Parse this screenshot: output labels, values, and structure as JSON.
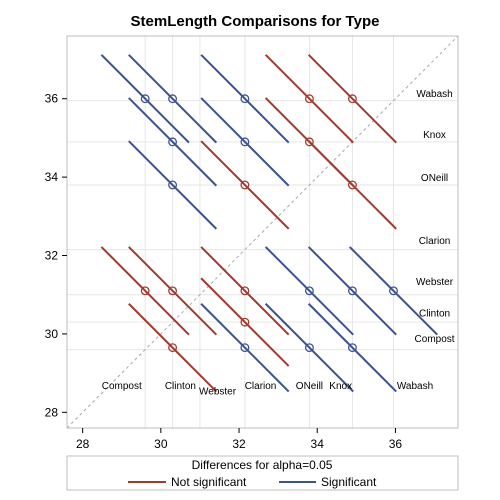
{
  "chart_data": {
    "type": "diffogram",
    "title": "StemLength Comparisons for Type",
    "xlim": [
      27.6,
      37.6
    ],
    "ylim": [
      27.6,
      37.6
    ],
    "x_ticks": [
      28,
      30,
      32,
      34,
      36
    ],
    "y_ticks": [
      28,
      30,
      32,
      34,
      36
    ],
    "x_tick_labels": [
      "28",
      "30",
      "32",
      "34",
      "36"
    ],
    "y_tick_labels": [
      "28",
      "30",
      "32",
      "34",
      "36"
    ],
    "grid": true,
    "reference_line": "diagonal",
    "levels": [
      {
        "name": "Compost",
        "mean": 29.6
      },
      {
        "name": "Clinton",
        "mean": 30.3
      },
      {
        "name": "Webster",
        "mean": 31.0
      },
      {
        "name": "Clarion",
        "mean": 32.15
      },
      {
        "name": "ONeill",
        "mean": 33.8
      },
      {
        "name": "Knox",
        "mean": 34.9
      },
      {
        "name": "Wabash",
        "mean": 35.95
      }
    ],
    "x_level_labels": [
      {
        "text": "Compost",
        "x": 29.0,
        "y": 28.6
      },
      {
        "text": "Clinton",
        "x": 30.5,
        "y": 28.6
      },
      {
        "text": "Webster",
        "x": 31.45,
        "y": 28.45
      },
      {
        "text": "Clarion",
        "x": 32.55,
        "y": 28.6
      },
      {
        "text": "ONeill",
        "x": 33.8,
        "y": 28.6
      },
      {
        "text": "Knox",
        "x": 34.6,
        "y": 28.6
      },
      {
        "text": "Wabash",
        "x": 36.5,
        "y": 28.6
      }
    ],
    "y_level_labels": [
      {
        "text": "Wabash",
        "x": 37.0,
        "y": 36.05
      },
      {
        "text": "Knox",
        "x": 37.0,
        "y": 35.0
      },
      {
        "text": "ONeill",
        "x": 37.0,
        "y": 33.9
      },
      {
        "text": "Clarion",
        "x": 37.0,
        "y": 32.3
      },
      {
        "text": "Webster",
        "x": 37.0,
        "y": 31.25
      },
      {
        "text": "Clinton",
        "x": 37.0,
        "y": 30.45
      },
      {
        "text": "Compost",
        "x": 37.0,
        "y": 29.8
      }
    ],
    "segments": [
      {
        "x": 32.15,
        "y": 36.0,
        "hw": 1.12,
        "significant": true
      },
      {
        "x": 33.8,
        "y": 36.0,
        "hw": 1.12,
        "significant": false
      },
      {
        "x": 34.9,
        "y": 36.0,
        "hw": 1.12,
        "significant": false
      },
      {
        "x": 29.6,
        "y": 36.0,
        "hw": 1.12,
        "significant": true
      },
      {
        "x": 30.3,
        "y": 36.0,
        "hw": 1.12,
        "significant": true
      },
      {
        "x": 32.15,
        "y": 34.9,
        "hw": 1.12,
        "significant": true
      },
      {
        "x": 30.3,
        "y": 34.9,
        "hw": 1.12,
        "significant": true
      },
      {
        "x": 33.8,
        "y": 34.9,
        "hw": 1.12,
        "significant": false
      },
      {
        "x": 32.15,
        "y": 33.8,
        "hw": 1.12,
        "significant": false
      },
      {
        "x": 34.9,
        "y": 33.8,
        "hw": 1.12,
        "significant": false
      },
      {
        "x": 30.3,
        "y": 33.8,
        "hw": 1.12,
        "significant": true
      },
      {
        "x": 29.6,
        "y": 31.1,
        "hw": 1.12,
        "significant": false
      },
      {
        "x": 30.3,
        "y": 31.1,
        "hw": 1.12,
        "significant": false
      },
      {
        "x": 32.15,
        "y": 31.1,
        "hw": 1.12,
        "significant": false
      },
      {
        "x": 33.8,
        "y": 31.1,
        "hw": 1.12,
        "significant": true
      },
      {
        "x": 34.9,
        "y": 31.1,
        "hw": 1.12,
        "significant": true
      },
      {
        "x": 35.95,
        "y": 31.1,
        "hw": 1.12,
        "significant": true
      },
      {
        "x": 32.15,
        "y": 30.3,
        "hw": 1.12,
        "significant": false
      },
      {
        "x": 30.3,
        "y": 29.65,
        "hw": 1.12,
        "significant": false
      },
      {
        "x": 32.15,
        "y": 29.65,
        "hw": 1.12,
        "significant": true
      },
      {
        "x": 33.8,
        "y": 29.65,
        "hw": 1.12,
        "significant": true
      },
      {
        "x": 34.9,
        "y": 29.65,
        "hw": 1.12,
        "significant": true
      }
    ],
    "legend": {
      "title": "Differences for alpha=0.05",
      "position": "bottom",
      "entries": [
        {
          "label": "Not significant",
          "color": "#a23a2e"
        },
        {
          "label": "Significant",
          "color": "#3b5393"
        }
      ]
    },
    "colors": {
      "not_significant": "#a23a2e",
      "significant": "#3b5393",
      "grid": "#e6e6e6",
      "reference": "#aaaaaa",
      "frame": "#bfbfbf"
    }
  }
}
